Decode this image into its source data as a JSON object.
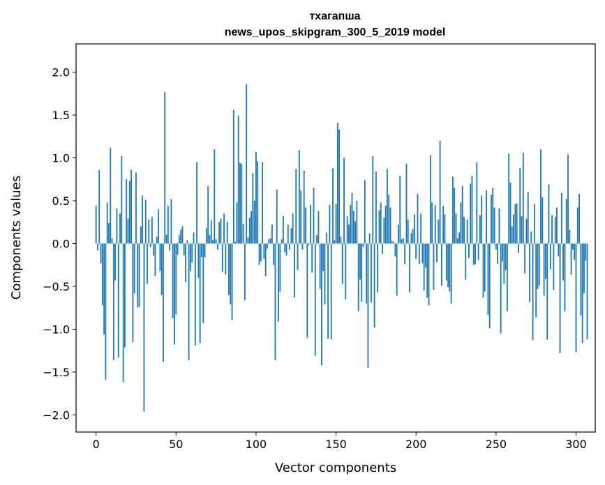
{
  "chart_data": {
    "type": "bar",
    "title": "тхагапша",
    "subtitle": "news_upos_skipgram_300_5_2019 model",
    "xlabel": "Vector components",
    "ylabel": "Components values",
    "xlim": [
      -12.5,
      312
    ],
    "ylim": [
      -2.2,
      2.33
    ],
    "xticks": [
      0,
      50,
      100,
      150,
      200,
      250,
      300
    ],
    "yticks": [
      -2.0,
      -1.5,
      -1.0,
      -0.5,
      0.0,
      0.5,
      1.0,
      1.5,
      2.0
    ],
    "xtick_labels": [
      "0",
      "50",
      "100",
      "150",
      "200",
      "250",
      "300"
    ],
    "ytick_labels": [
      "−2.0",
      "−1.5",
      "−1.0",
      "−0.5",
      "0.0",
      "0.5",
      "1.0",
      "1.5",
      "2.0"
    ],
    "bar_color": "#1f77b4",
    "values": [
      0.44,
      -0.08,
      0.86,
      -0.23,
      -0.72,
      -1.06,
      -1.59,
      0.48,
      0.24,
      1.12,
      0.06,
      -1.36,
      -0.43,
      0.41,
      -1.33,
      0.35,
      1.02,
      -1.62,
      -1.21,
      0.75,
      0.29,
      0.73,
      0.86,
      -1.15,
      -0.58,
      0.83,
      -0.74,
      -0.74,
      0.2,
      0.56,
      -1.96,
      0.51,
      -0.47,
      0.28,
      -0.04,
      0.31,
      -0.14,
      -0.38,
      0.08,
      0.4,
      -0.32,
      -0.6,
      -1.38,
      1.77,
      0.1,
      0.44,
      -0.08,
      0.52,
      -0.87,
      -1.18,
      -0.83,
      -0.13,
      0.1,
      0.16,
      0.2,
      -0.14,
      -0.45,
      0.04,
      -1.36,
      -0.32,
      -0.22,
      0.13,
      -1.19,
      0.95,
      -0.4,
      -1.16,
      -0.16,
      -0.93,
      -0.16,
      0.18,
      0.67,
      0.1,
      0.27,
      0.04,
      1.1,
      0.05,
      -0.07,
      0.25,
      0.29,
      -0.33,
      0.35,
      -0.36,
      0.25,
      -0.6,
      -0.71,
      -0.89,
      1.56,
      0.02,
      0.48,
      1.49,
      0.94,
      0.93,
      0.23,
      -0.66,
      1.86,
      0.07,
      0.3,
      0.38,
      0.82,
      0.5,
      1.07,
      0.96,
      -0.25,
      -0.21,
      0.95,
      -0.18,
      -0.38,
      -0.06,
      0.05,
      0.06,
      0.22,
      -0.25,
      -1.36,
      0.63,
      -0.91,
      -0.56,
      0.05,
      0.32,
      -0.1,
      -0.14,
      0.22,
      -0.07,
      0.18,
      0.35,
      -0.63,
      0.87,
      -0.31,
      1.09,
      0.62,
      -0.07,
      0.85,
      0.42,
      -1.1,
      -0.02,
      0.45,
      -0.34,
      0.65,
      -1.31,
      0.1,
      0.38,
      -0.53,
      -1.42,
      -0.32,
      -0.71,
      0.13,
      -1.11,
      0.45,
      -1.12,
      0.88,
      0.04,
      0.46,
      1.41,
      1.33,
      0.08,
      -0.47,
      1.0,
      -0.65,
      0.32,
      0.22,
      0.45,
      0.59,
      0.38,
      0.26,
      0.5,
      -0.79,
      -0.42,
      -0.68,
      -0.04,
      0.74,
      -0.7,
      -1.45,
      0.12,
      -0.69,
      1.02,
      -0.98,
      0.84,
      -0.57,
      0.39,
      0.48,
      -0.12,
      0.3,
      0.44,
      0.87,
      0.57,
      0.42,
      0.03,
      0.02,
      -0.15,
      -0.61,
      0.22,
      0.79,
      0.05,
      0.06,
      -0.24,
      0.93,
      0.28,
      -0.57,
      0.12,
      0.17,
      0.34,
      -0.18,
      0.58,
      -0.24,
      0.35,
      -0.23,
      -0.55,
      -0.28,
      -0.63,
      -0.72,
      1.03,
      0.48,
      -0.54,
      0.45,
      -0.22,
      0.28,
      1.2,
      -0.49,
      0.44,
      0.34,
      -0.43,
      -0.51,
      -0.56,
      -0.7,
      0.78,
      0.65,
      0.35,
      0.06,
      0.13,
      0.48,
      0.67,
      0.31,
      -0.42,
      0.28,
      -0.17,
      0.7,
      0.79,
      -0.25,
      -0.24,
      0.95,
      -0.19,
      0.33,
      0.56,
      -0.63,
      -0.56,
      0.62,
      -0.83,
      -0.99,
      0.57,
      0.65,
      0.42,
      -0.07,
      -0.24,
      0.41,
      -1.05,
      -0.21,
      -0.47,
      -0.31,
      -0.79,
      1.05,
      0.71,
      0.2,
      0.34,
      0.46,
      0.47,
      -0.11,
      0.88,
      0.32,
      1.06,
      -0.35,
      0.29,
      0.6,
      -0.68,
      0.14,
      -1.13,
      0.46,
      -0.86,
      -0.53,
      -0.49,
      1.1,
      0.54,
      -0.61,
      -0.41,
      -1.12,
      0.69,
      -0.3,
      0.33,
      -0.54,
      0.31,
      0.42,
      -0.15,
      -1.28,
      0.59,
      -0.43,
      -0.79,
      0.52,
      1.04,
      0.16,
      -0.36,
      -0.07,
      -0.19,
      -1.27,
      0.42,
      0.58,
      -0.84,
      -1.16,
      -0.58,
      -0.2,
      -1.12
    ]
  }
}
